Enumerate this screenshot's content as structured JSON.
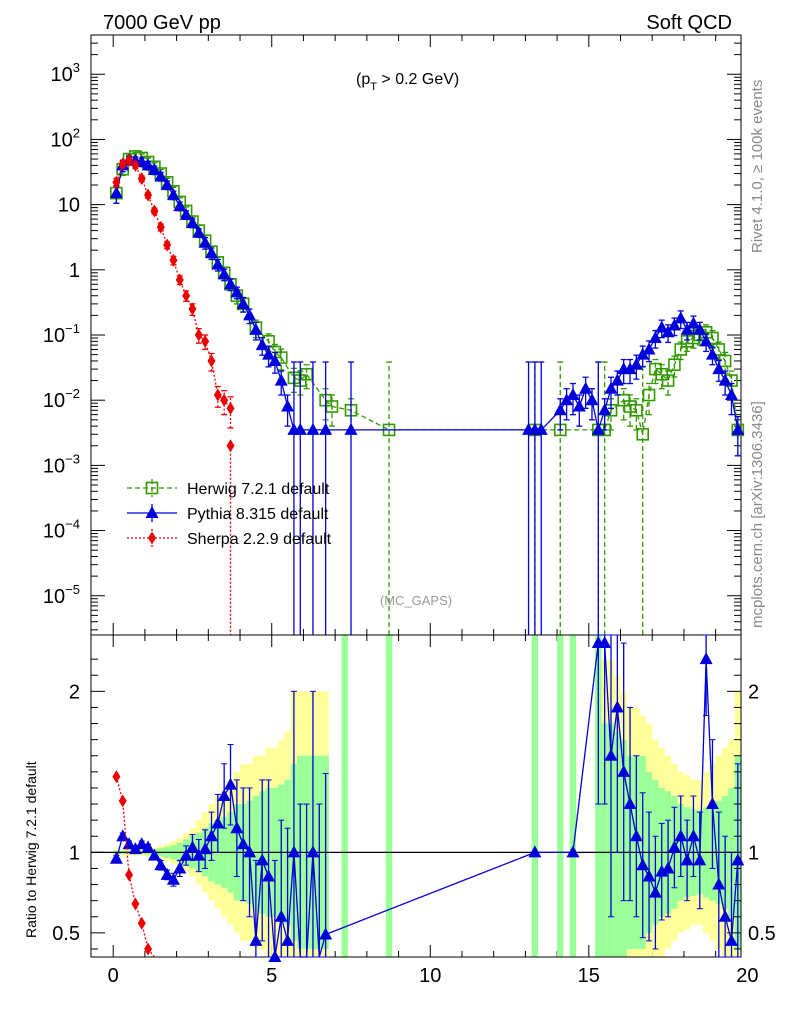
{
  "header": {
    "left": "7000 GeV pp",
    "right": "Soft QCD",
    "cut_label": "(p",
    "cut_sub": "T",
    "cut_rest": " > 0.2 GeV)",
    "analysis_tag": "(MC_GAPS)",
    "side_rivet": "Rivet 4.1.0, ≥ 100k events",
    "side_site": "mcplots.cern.ch [arXiv:1306.3436]"
  },
  "chart_data": [
    {
      "type": "line",
      "panel": "main",
      "yscale": "log",
      "xlim": [
        -0.7,
        19.8
      ],
      "ylim": [
        2.5e-06,
        4000
      ],
      "xticks": [
        0,
        5,
        10,
        15,
        20
      ],
      "yticks": [
        {
          "value": 1e-05,
          "label": "10",
          "exp": "−5"
        },
        {
          "value": 0.0001,
          "label": "10",
          "exp": "−4"
        },
        {
          "value": 0.001,
          "label": "10",
          "exp": "−3"
        },
        {
          "value": 0.01,
          "label": "10",
          "exp": "−2"
        },
        {
          "value": 0.1,
          "label": "10",
          "exp": "−1"
        },
        {
          "value": 1,
          "label": "1",
          "exp": ""
        },
        {
          "value": 10,
          "label": "10",
          "exp": ""
        },
        {
          "value": 100,
          "label": "10",
          "exp": "2"
        },
        {
          "value": 1000,
          "label": "10",
          "exp": "3"
        }
      ],
      "legend": [
        {
          "name": "Herwig 7.2.1 default",
          "color": "#339900",
          "marker": "open-square",
          "dash": "5,3"
        },
        {
          "name": "Pythia 8.315 default",
          "color": "#0000dd",
          "marker": "triangle",
          "dash": ""
        },
        {
          "name": "Sherpa 2.2.9 default",
          "color": "#ee0000",
          "marker": "diamond",
          "dash": "2,2"
        }
      ],
      "series": [
        {
          "name": "Herwig 7.2.1 default",
          "x": [
            0.1,
            0.3,
            0.5,
            0.7,
            0.9,
            1.1,
            1.3,
            1.5,
            1.7,
            1.9,
            2.1,
            2.3,
            2.5,
            2.7,
            2.9,
            3.1,
            3.3,
            3.5,
            3.7,
            3.9,
            4.1,
            4.5,
            4.9,
            5.1,
            5.3,
            5.7,
            5.9,
            6.1,
            6.7,
            6.9,
            7.5,
            8.7,
            13.3,
            14.1,
            15.3,
            15.5,
            15.7,
            16.1,
            16.3,
            16.5,
            16.7,
            16.9,
            17.1,
            17.3,
            17.5,
            17.7,
            17.9,
            18.1,
            18.3,
            18.5,
            18.7,
            18.9,
            19.1,
            19.3,
            19.5,
            19.7
          ],
          "y": [
            15,
            35,
            50,
            55,
            52,
            45,
            38,
            30,
            22,
            16,
            11,
            8,
            5.5,
            4,
            2.8,
            1.9,
            1.3,
            0.9,
            0.6,
            0.4,
            0.3,
            0.13,
            0.08,
            0.055,
            0.045,
            0.022,
            0.02,
            0.025,
            0.01,
            0.008,
            0.007,
            0.0035,
            0.0035,
            0.0035,
            0.0035,
            0.0035,
            0.007,
            0.01,
            0.008,
            0.007,
            0.003,
            0.012,
            0.03,
            0.025,
            0.02,
            0.035,
            0.06,
            0.08,
            0.09,
            0.1,
            0.11,
            0.09,
            0.06,
            0.04,
            0.02,
            0.0035
          ],
          "err": [
            0.3,
            0.2,
            0.15,
            0.15,
            0.15,
            0.15,
            0.15,
            0.15,
            0.15,
            0.15,
            0.15,
            0.15,
            0.15,
            0.2,
            0.2,
            0.2,
            0.2,
            0.2,
            0.2,
            0.25,
            0.25,
            0.3,
            0.3,
            0.3,
            0.35,
            0.4,
            0.4,
            0.4,
            0.5,
            0.5,
            0.5,
            10,
            10,
            10,
            10,
            10,
            0.5,
            0.5,
            0.5,
            0.5,
            10,
            0.5,
            0.4,
            0.4,
            0.4,
            0.35,
            0.3,
            0.3,
            0.3,
            0.3,
            0.3,
            0.3,
            0.3,
            0.35,
            0.4,
            0.6
          ]
        },
        {
          "name": "Pythia 8.315 default",
          "x": [
            0.1,
            0.3,
            0.5,
            0.7,
            0.9,
            1.1,
            1.3,
            1.5,
            1.7,
            1.9,
            2.1,
            2.3,
            2.5,
            2.7,
            2.9,
            3.1,
            3.3,
            3.5,
            3.7,
            3.9,
            4.1,
            4.3,
            4.5,
            4.7,
            4.9,
            5.1,
            5.3,
            5.5,
            5.7,
            5.9,
            6.3,
            6.7,
            7.5,
            13.1,
            13.3,
            13.5,
            14.1,
            14.3,
            14.5,
            14.7,
            14.9,
            15.1,
            15.3,
            15.5,
            15.7,
            15.9,
            16.1,
            16.3,
            16.5,
            16.7,
            16.9,
            17.1,
            17.3,
            17.5,
            17.7,
            17.9,
            18.1,
            18.3,
            18.5,
            18.7,
            18.9,
            19.1,
            19.3,
            19.5,
            19.7
          ],
          "y": [
            15,
            40,
            48,
            47,
            45,
            40,
            34,
            27,
            20,
            14,
            9.5,
            7,
            5.2,
            3.7,
            2.6,
            1.8,
            1.2,
            0.85,
            0.6,
            0.45,
            0.3,
            0.2,
            0.12,
            0.07,
            0.05,
            0.04,
            0.02,
            0.008,
            0.0035,
            0.0035,
            0.0035,
            0.0035,
            0.0035,
            0.0035,
            0.0035,
            0.0035,
            0.007,
            0.01,
            0.012,
            0.008,
            0.015,
            0.01,
            0.0035,
            0.007,
            0.015,
            0.02,
            0.03,
            0.03,
            0.035,
            0.05,
            0.06,
            0.09,
            0.13,
            0.11,
            0.14,
            0.18,
            0.12,
            0.15,
            0.12,
            0.08,
            0.05,
            0.03,
            0.02,
            0.012,
            0.0035
          ],
          "err": [
            0.3,
            0.2,
            0.15,
            0.15,
            0.15,
            0.15,
            0.15,
            0.15,
            0.15,
            0.15,
            0.15,
            0.15,
            0.15,
            0.15,
            0.2,
            0.2,
            0.2,
            0.2,
            0.2,
            0.2,
            0.25,
            0.25,
            0.3,
            0.3,
            0.35,
            0.35,
            0.4,
            0.5,
            10,
            10,
            10,
            10,
            10,
            10,
            10,
            10,
            0.5,
            0.5,
            0.5,
            0.5,
            0.5,
            0.5,
            10,
            0.5,
            0.5,
            0.4,
            0.4,
            0.4,
            0.4,
            0.35,
            0.35,
            0.3,
            0.3,
            0.3,
            0.3,
            0.3,
            0.3,
            0.3,
            0.3,
            0.3,
            0.3,
            0.35,
            0.4,
            0.5,
            0.6
          ]
        },
        {
          "name": "Sherpa 2.2.9 default",
          "x": [
            0.1,
            0.3,
            0.5,
            0.7,
            0.9,
            1.1,
            1.3,
            1.5,
            1.7,
            1.9,
            2.1,
            2.3,
            2.5,
            2.7,
            2.9,
            3.1,
            3.3,
            3.5,
            3.7
          ],
          "y": [
            22,
            42,
            48,
            40,
            25,
            14,
            8,
            4.5,
            2.4,
            1.4,
            0.7,
            0.4,
            0.25,
            0.1,
            0.08,
            0.04,
            0.012,
            0.01,
            0.0075
          ],
          "err": [
            0.15,
            0.1,
            0.1,
            0.1,
            0.1,
            0.1,
            0.1,
            0.12,
            0.12,
            0.15,
            0.15,
            0.18,
            0.2,
            0.25,
            0.25,
            0.3,
            0.35,
            0.4,
            0.5
          ]
        }
      ],
      "extra_points": [
        {
          "series": "Sherpa 2.2.9 default",
          "x": 3.7,
          "y": 0.002
        }
      ]
    },
    {
      "type": "line",
      "panel": "ratio",
      "ylabel": "Ratio to Herwig 7.2.1 default",
      "xlim": [
        -0.7,
        19.8
      ],
      "ylim": [
        0.35,
        2.35
      ],
      "xticks": [
        0,
        5,
        10,
        15,
        20
      ],
      "yticks": [
        0.5,
        1,
        2
      ],
      "reference": 1,
      "bands": {
        "x": [
          0.1,
          0.3,
          0.5,
          0.7,
          0.9,
          1.1,
          1.3,
          1.5,
          1.7,
          1.9,
          2.1,
          2.3,
          2.5,
          2.7,
          2.9,
          3.1,
          3.3,
          3.5,
          3.7,
          3.9,
          4.1,
          4.3,
          4.5,
          4.7,
          4.9,
          5.1,
          5.3,
          5.5,
          5.7,
          5.9,
          6.1,
          6.3,
          6.5,
          6.7,
          7.3,
          8.7,
          13.3,
          14.1,
          14.5,
          15.3,
          15.5,
          15.7,
          15.9,
          16.1,
          16.3,
          16.5,
          16.7,
          16.9,
          17.1,
          17.3,
          17.5,
          17.7,
          17.9,
          18.1,
          18.3,
          18.5,
          18.7,
          18.9,
          19.1,
          19.3,
          19.5,
          19.7
        ],
        "green": [
          0.01,
          0.01,
          0.01,
          0.01,
          0.01,
          0.015,
          0.02,
          0.025,
          0.035,
          0.045,
          0.06,
          0.08,
          0.1,
          0.12,
          0.15,
          0.18,
          0.2,
          0.22,
          0.25,
          0.3,
          0.3,
          0.32,
          0.35,
          0.38,
          0.4,
          0.4,
          0.42,
          0.45,
          0.55,
          0.6,
          0.6,
          0.6,
          0.6,
          0.6,
          5,
          5,
          5,
          5,
          5,
          5,
          0.8,
          0.8,
          0.75,
          0.7,
          0.6,
          0.6,
          0.6,
          0.5,
          0.45,
          0.4,
          0.38,
          0.35,
          0.3,
          0.28,
          0.27,
          0.26,
          0.28,
          0.3,
          0.32,
          0.35,
          0.4,
          0.6
        ],
        "yellow": [
          0.02,
          0.02,
          0.02,
          0.02,
          0.02,
          0.025,
          0.03,
          0.04,
          0.055,
          0.07,
          0.09,
          0.12,
          0.15,
          0.2,
          0.25,
          0.3,
          0.35,
          0.4,
          0.45,
          0.5,
          0.55,
          0.55,
          0.6,
          0.6,
          0.65,
          0.65,
          0.7,
          0.75,
          1.0,
          1.0,
          1.0,
          1.0,
          1.0,
          1.0,
          5,
          5,
          5,
          5,
          5,
          5,
          1.2,
          1.2,
          1.1,
          1.0,
          0.9,
          0.9,
          0.85,
          0.8,
          0.7,
          0.65,
          0.6,
          0.55,
          0.5,
          0.48,
          0.45,
          0.45,
          0.5,
          0.55,
          0.6,
          0.65,
          0.7,
          1.0
        ]
      },
      "series": [
        {
          "name": "Pythia 8.315 default",
          "x": [
            0.1,
            0.3,
            0.5,
            0.7,
            0.9,
            1.1,
            1.3,
            1.5,
            1.7,
            1.9,
            2.1,
            2.3,
            2.5,
            2.7,
            2.9,
            3.1,
            3.3,
            3.5,
            3.7,
            3.9,
            4.1,
            4.3,
            4.5,
            4.7,
            4.9,
            5.1,
            5.3,
            5.5,
            5.7,
            5.9,
            6.1,
            6.3,
            6.5,
            6.7,
            13.3,
            14.5,
            15.3,
            15.5,
            15.7,
            15.9,
            16.1,
            16.3,
            16.5,
            16.7,
            16.9,
            17.1,
            17.3,
            17.5,
            17.7,
            17.9,
            18.1,
            18.3,
            18.5,
            18.7,
            18.9,
            19.1,
            19.3,
            19.5,
            19.7
          ],
          "y": [
            0.96,
            1.1,
            1.05,
            1.02,
            1.05,
            1.03,
            0.98,
            0.92,
            0.86,
            0.83,
            0.9,
            0.98,
            1.03,
            0.98,
            1.02,
            1.1,
            1.18,
            1.35,
            1.42,
            1.15,
            1.05,
            1.0,
            0.45,
            0.95,
            0.85,
            0.35,
            0.6,
            0.45,
            1.0,
            0.3,
            0.3,
            1.0,
            0.3,
            0.49,
            1.0,
            1.0,
            2.3,
            2.3,
            1.6,
            1.9,
            1.5,
            1.3,
            1.1,
            0.92,
            0.85,
            0.75,
            0.88,
            0.9,
            1.03,
            1.1,
            0.95,
            1.1,
            0.95,
            2.2,
            1.3,
            0.8,
            0.6,
            0.45,
            0.95
          ],
          "err": [
            0.02,
            0.02,
            0.02,
            0.02,
            0.02,
            0.02,
            0.02,
            0.03,
            0.03,
            0.04,
            0.05,
            0.06,
            0.08,
            0.1,
            0.12,
            0.15,
            0.18,
            0.2,
            0.25,
            0.3,
            0.35,
            0.4,
            0.5,
            0.5,
            0.6,
            0.6,
            0.6,
            0.7,
            1.0,
            1.0,
            1.0,
            1.0,
            1.0,
            1.0,
            0,
            0,
            1.0,
            1.0,
            1.0,
            0.9,
            0.8,
            0.6,
            0.5,
            0.45,
            0.4,
            0.35,
            0.3,
            0.3,
            0.25,
            0.25,
            0.25,
            0.25,
            0.3,
            0.35,
            0.4,
            0.45,
            0.5,
            0.55,
            0.6
          ]
        },
        {
          "name": "Sherpa 2.2.9 default",
          "x": [
            0.1,
            0.3,
            0.5,
            0.7,
            0.9,
            1.1,
            1.3
          ],
          "y": [
            1.47,
            1.32,
            0.86,
            0.68,
            0.56,
            0.4,
            0.3
          ],
          "err": [
            0,
            0,
            0,
            0,
            0,
            0,
            0
          ]
        }
      ]
    }
  ]
}
